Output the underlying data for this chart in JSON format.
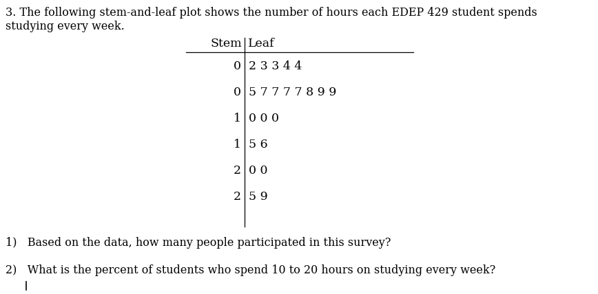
{
  "title_line1": "3. The following stem-and-leaf plot shows the number of hours each EDEP 429 student spends",
  "title_line2": "studying every week.",
  "stem_header": "Stem",
  "leaf_header": "Leaf",
  "stem_leaf_rows": [
    {
      "stem": "0",
      "leaf": "2 3 3 4 4"
    },
    {
      "stem": "0",
      "leaf": "5 7 7 7 7 8 9 9"
    },
    {
      "stem": "1",
      "leaf": "0 0 0"
    },
    {
      "stem": "1",
      "leaf": "5 6"
    },
    {
      "stem": "2",
      "leaf": "0 0"
    },
    {
      "stem": "2",
      "leaf": "5 9"
    }
  ],
  "question1": "1)   Based on the data, how many people participated in this survey?",
  "question2": "2)   What is the percent of students who spend 10 to 20 hours on studying every week?",
  "bg_color": "#ffffff",
  "text_color": "#000000",
  "font_size_body": 11.5,
  "font_size_table": 12.5
}
